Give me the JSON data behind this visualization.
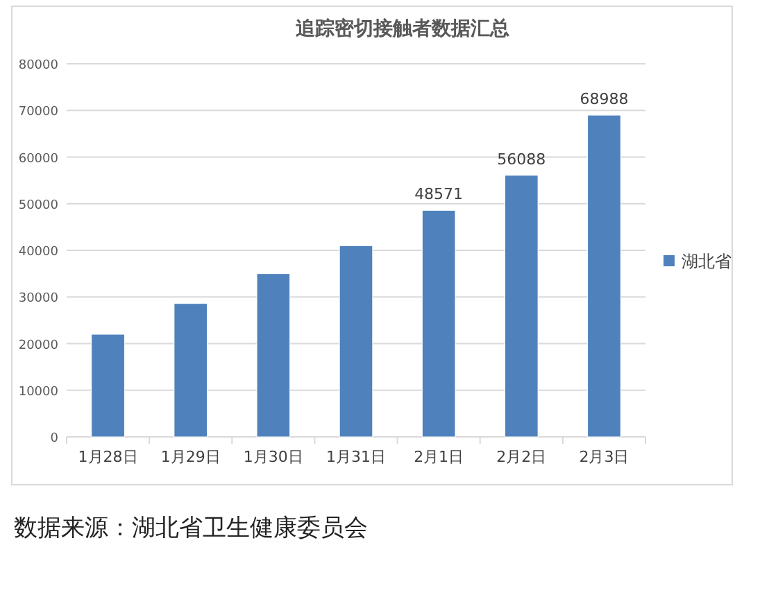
{
  "chart_data": {
    "type": "bar",
    "title": "追踪密切接触者数据汇总",
    "categories": [
      "1月28日",
      "1月29日",
      "1月30日",
      "1月31日",
      "2月1日",
      "2月2日",
      "2月3日"
    ],
    "series": [
      {
        "name": "湖北省",
        "color": "#4f81bd",
        "values": [
          22000,
          28600,
          35000,
          41000,
          48571,
          56088,
          68988
        ],
        "value_labels": [
          null,
          null,
          null,
          null,
          "48571",
          "56088",
          "68988"
        ]
      }
    ],
    "ylim": [
      0,
      80000
    ],
    "yticks": [
      0,
      10000,
      20000,
      30000,
      40000,
      50000,
      60000,
      70000,
      80000
    ],
    "grid": "y",
    "legend": "right",
    "annotations": [
      "数据来源：湖北省卫生健康委员会"
    ]
  }
}
